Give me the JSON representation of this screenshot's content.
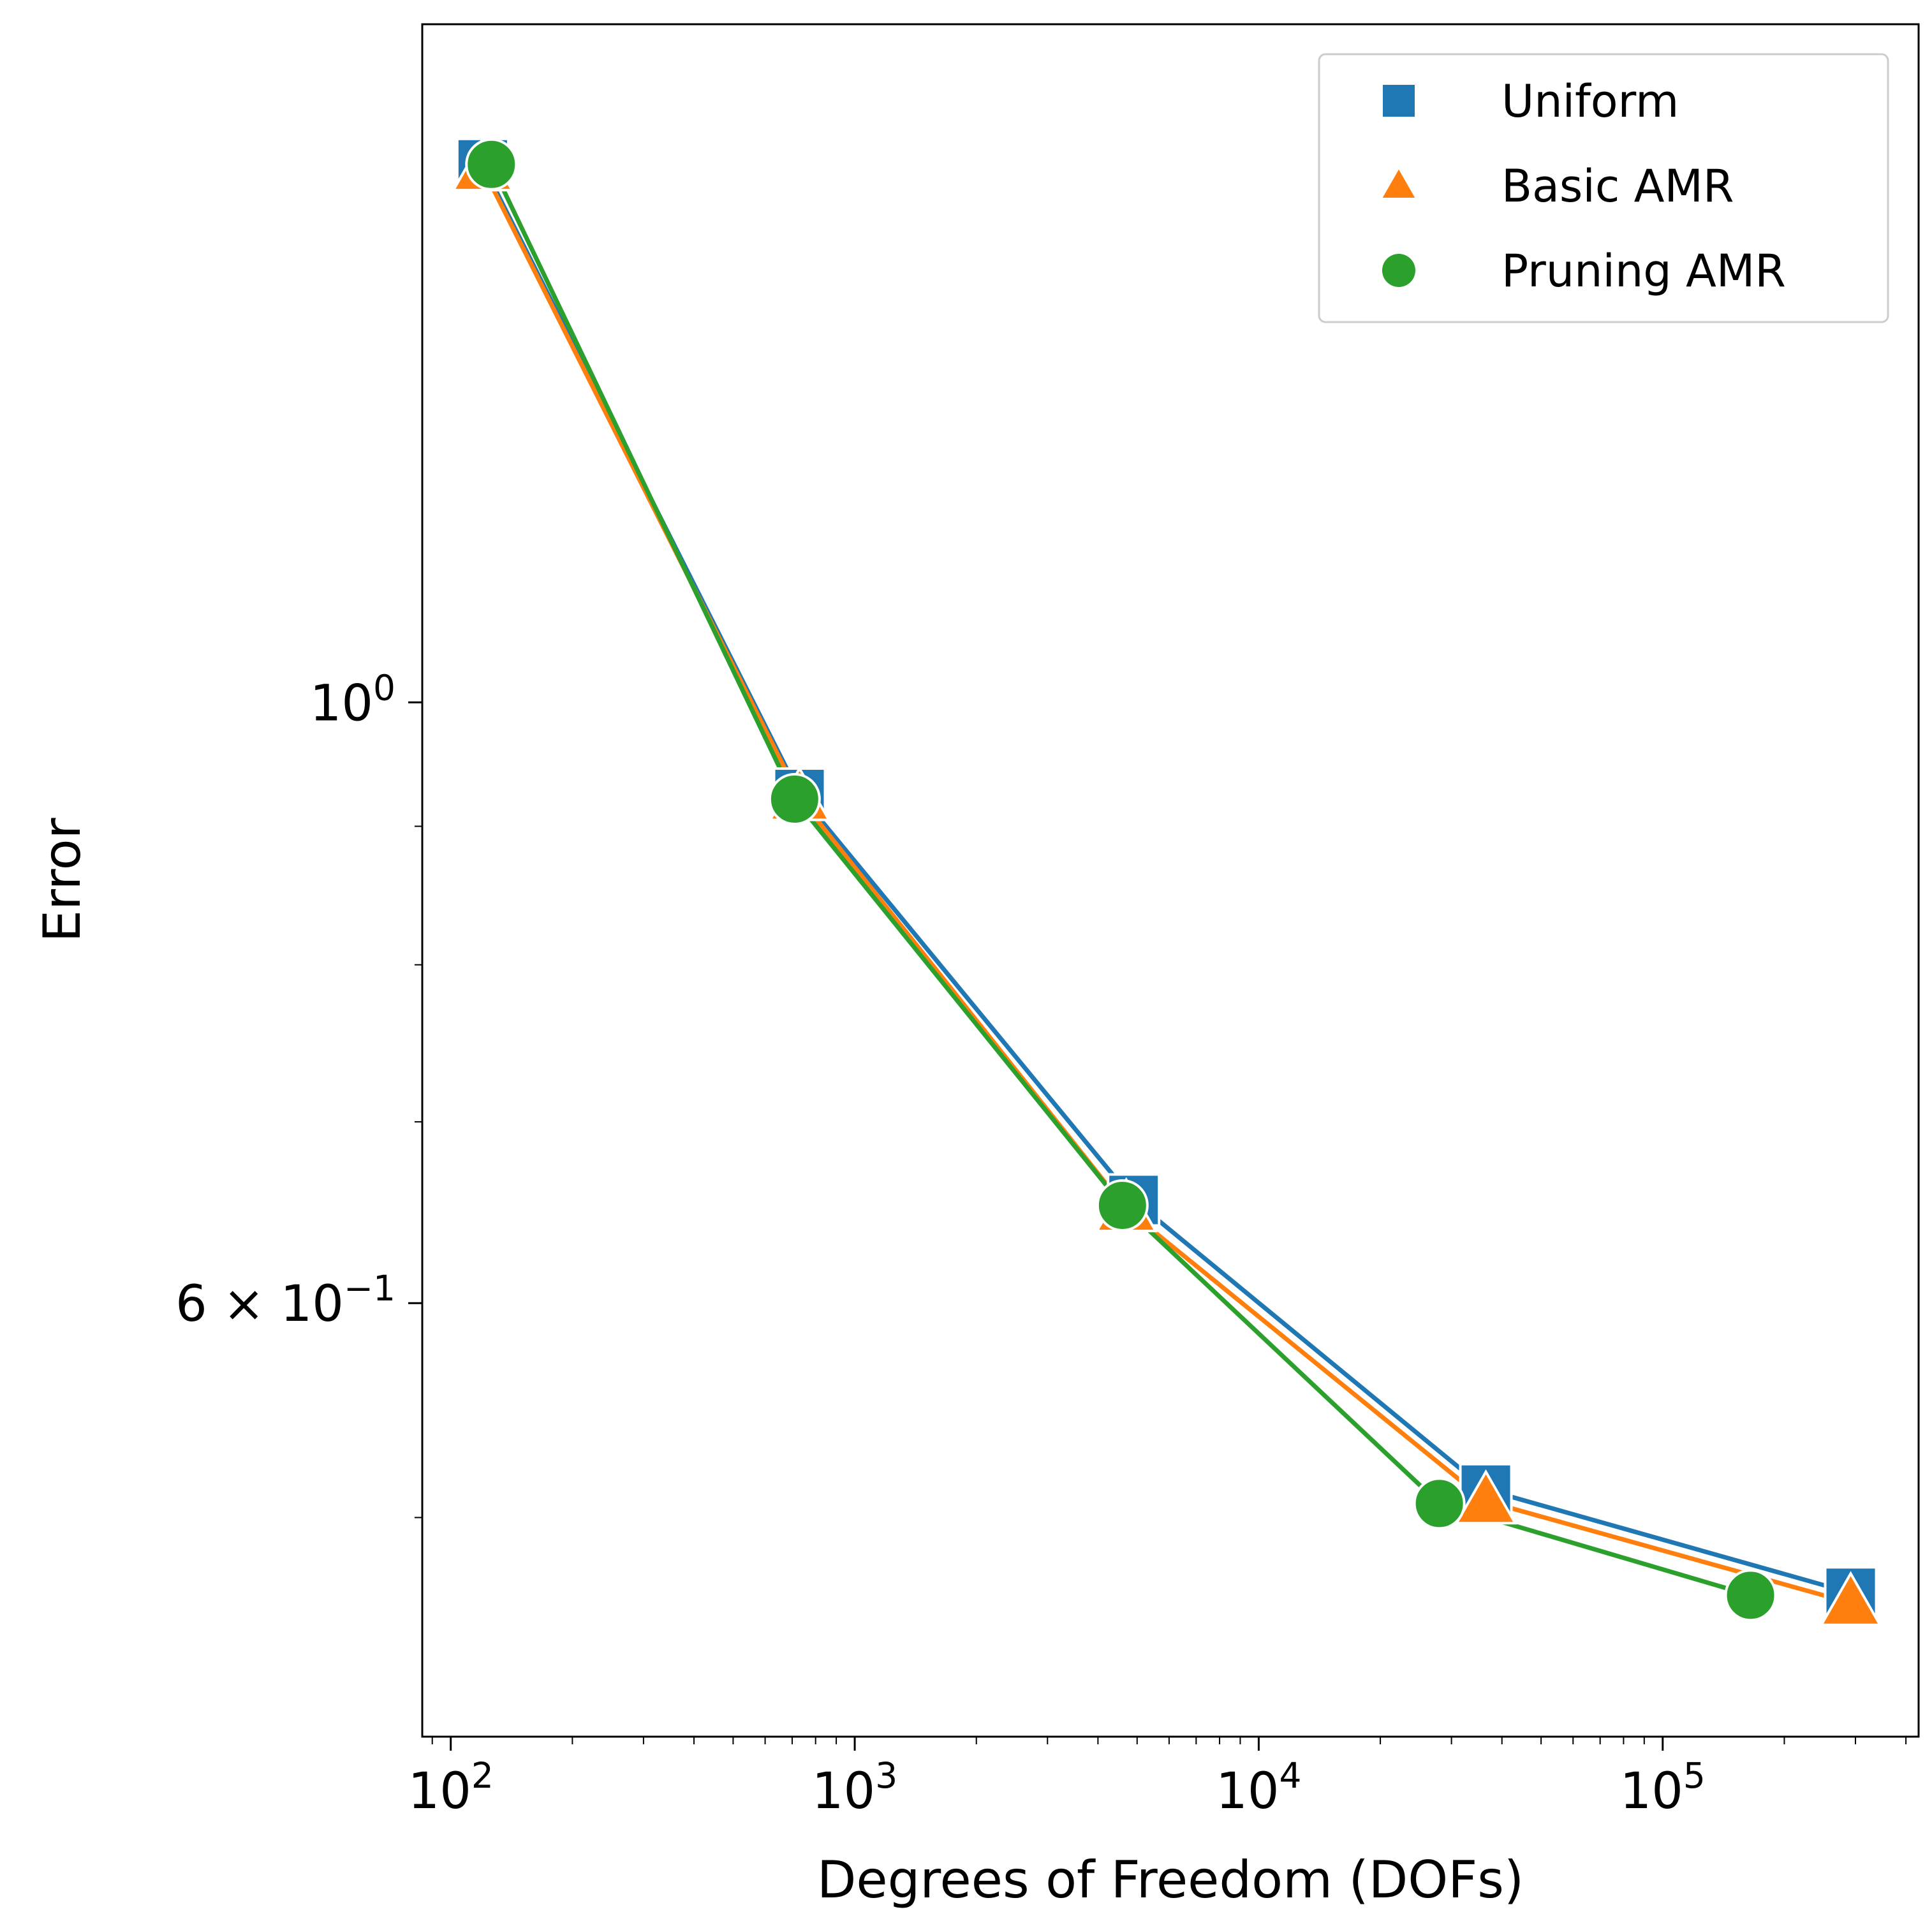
{
  "chart_data": {
    "type": "line",
    "title": "",
    "xlabel": "Degrees of Freedom (DOFs)",
    "ylabel": "Error",
    "xscale": "log",
    "yscale": "log",
    "xlim": [
      85,
      430000
    ],
    "ylim": [
      0.415,
      1.78
    ],
    "x_ticks": [
      {
        "value": 100,
        "base": "10",
        "exp": "2"
      },
      {
        "value": 1000,
        "base": "10",
        "exp": "3"
      },
      {
        "value": 10000,
        "base": "10",
        "exp": "4"
      },
      {
        "value": 100000,
        "base": "10",
        "exp": "5"
      }
    ],
    "y_ticks": [
      {
        "value": 1.0,
        "prefix": "",
        "base": "10",
        "exp": "0"
      },
      {
        "value": 0.6,
        "prefix": "6 × ",
        "base": "10",
        "exp": "−1"
      }
    ],
    "y_minor_ticks": [
      0.5,
      0.7,
      0.8,
      0.9
    ],
    "legend_position": "top-right",
    "series": [
      {
        "name": "Uniform",
        "marker": "square",
        "color": "#1f77b4",
        "x": [
          120,
          730,
          4900,
          36500,
          292000
        ],
        "y": [
          1.58,
          0.925,
          0.655,
          0.512,
          0.469
        ]
      },
      {
        "name": "Basic AMR",
        "marker": "triangle",
        "color": "#ff7f0e",
        "x": [
          120,
          730,
          4700,
          36500,
          292000
        ],
        "y": [
          1.575,
          0.922,
          0.65,
          0.507,
          0.465
        ]
      },
      {
        "name": "Pruning AMR",
        "marker": "circle",
        "color": "#2ca02c",
        "x": [
          126,
          710,
          4600,
          28000,
          165000
        ],
        "y": [
          1.58,
          0.921,
          0.652,
          0.506,
          0.468
        ]
      }
    ]
  }
}
